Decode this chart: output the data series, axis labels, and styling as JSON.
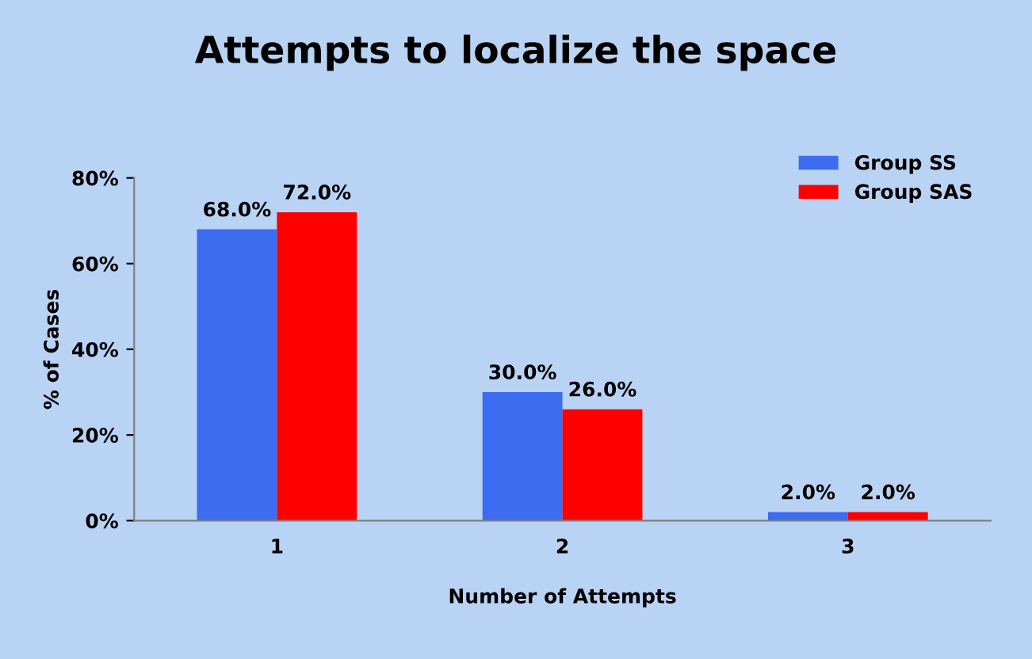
{
  "chart_data": {
    "type": "bar",
    "title": "Attempts to localize the space",
    "xlabel": "Number of Attempts",
    "ylabel": "% of Cases",
    "categories": [
      "1",
      "2",
      "3"
    ],
    "series": [
      {
        "name": "Group SS",
        "color": "#3d6cf0",
        "values": [
          68,
          30,
          2
        ],
        "value_labels": [
          "68.0%",
          "30.0%",
          "2.0%"
        ]
      },
      {
        "name": "Group SAS",
        "color": "#ff0000",
        "values": [
          72,
          26,
          2
        ],
        "value_labels": [
          "72.0%",
          "26.0%",
          "2.0%"
        ]
      }
    ],
    "ylim": [
      0,
      80
    ],
    "yticks": [
      {
        "value": 0,
        "label": "0%"
      },
      {
        "value": 20,
        "label": "20%"
      },
      {
        "value": 40,
        "label": "40%"
      },
      {
        "value": 60,
        "label": "60%"
      },
      {
        "value": 80,
        "label": "80%"
      }
    ],
    "grid": false,
    "legend": "top right"
  }
}
